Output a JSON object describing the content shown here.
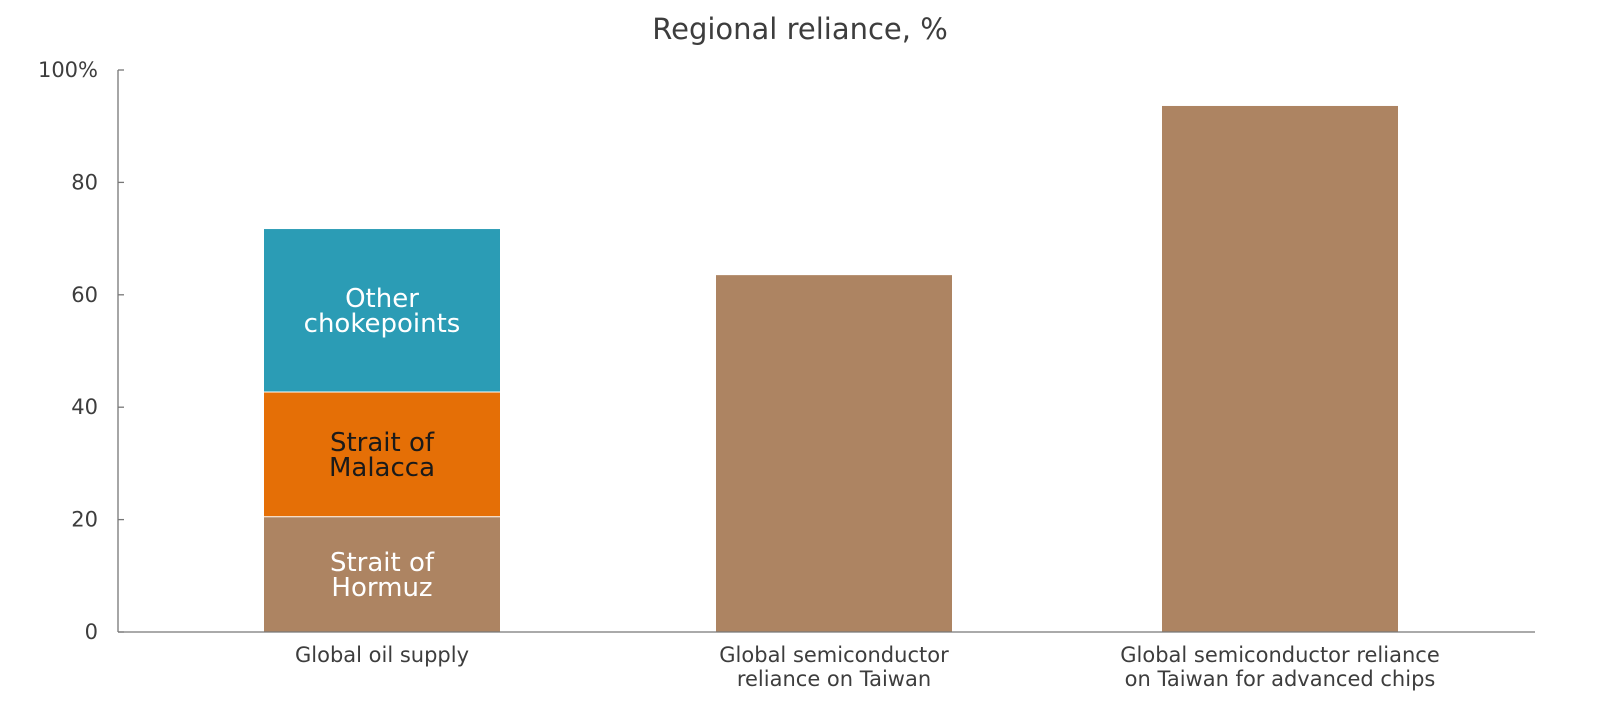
{
  "chart_data": {
    "type": "bar",
    "title": "Regional reliance, %",
    "xlabel": "",
    "ylabel": "",
    "ylim": [
      0,
      100
    ],
    "y_ticks": [
      "0",
      "20",
      "40",
      "60",
      "80",
      "100%"
    ],
    "y_tick_values": [
      0,
      20,
      40,
      60,
      80,
      100
    ],
    "grid": false,
    "categories": [
      [
        "Global oil supply"
      ],
      [
        "Global semiconductor",
        "reliance on Taiwan"
      ],
      [
        "Global semiconductor reliance",
        "on Taiwan for advanced chips"
      ]
    ],
    "stack": {
      "category_index": 0,
      "segments": [
        {
          "label": [
            "Strait of",
            "Hormuz"
          ],
          "value": 20.5,
          "color": "#ad8462",
          "text_color": "#ffffff"
        },
        {
          "label": [
            "Strait of",
            "Malacca"
          ],
          "value": 22.2,
          "color": "#e56f06",
          "text_color": "#1a1a1a"
        },
        {
          "label": [
            "Other",
            "chokepoints"
          ],
          "value": 29.0,
          "color": "#2b9cb5",
          "text_color": "#ffffff"
        }
      ]
    },
    "bars": [
      {
        "category_index": 1,
        "value": 63.5,
        "color": "#ad8462"
      },
      {
        "category_index": 2,
        "value": 93.6,
        "color": "#ad8462"
      }
    ]
  }
}
